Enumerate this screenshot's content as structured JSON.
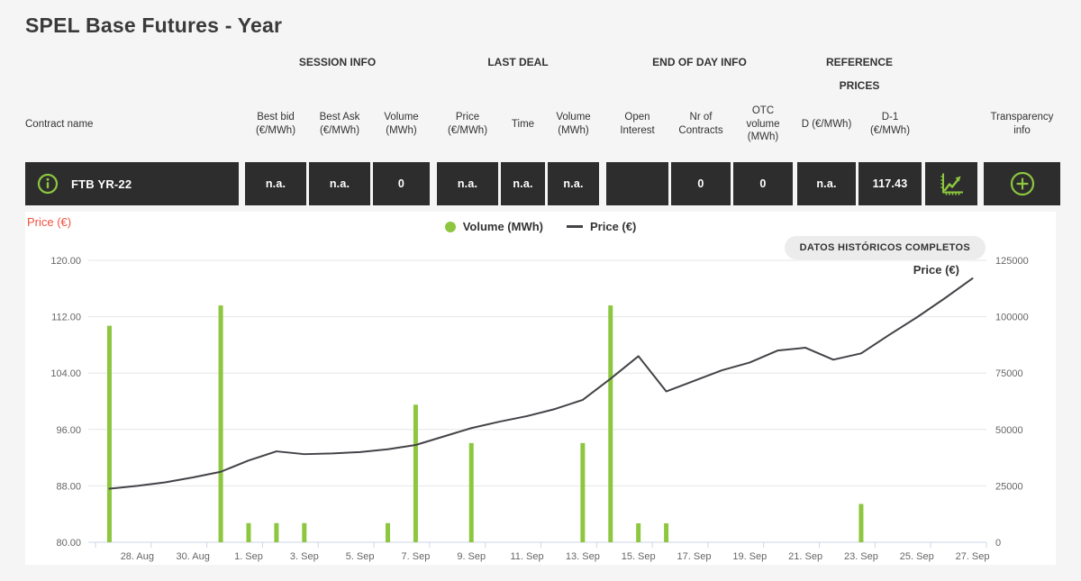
{
  "page": {
    "title": "SPEL Base Futures - Year"
  },
  "table": {
    "groups": {
      "session": "SESSION INFO",
      "last_deal": "LAST DEAL",
      "end_of_day": "END OF DAY INFO",
      "reference_l1": "REFERENCE",
      "reference_l2": "PRICES"
    },
    "headers": {
      "contract": "Contract name",
      "best_bid": "Best bid (€/MWh)",
      "best_ask": "Best Ask (€/MWh)",
      "volume": "Volume (MWh)",
      "price": "Price (€/MWh)",
      "time": "Time",
      "volume_last": "Volume (MWh)",
      "open_interest": "Open Interest",
      "nr_contracts": "Nr of Contracts",
      "otc_volume": "OTC volume (MWh)",
      "d": "D (€/MWh)",
      "d_1": "D-1 (€/MWh)",
      "transparency": "Transparency info"
    },
    "row": {
      "contract": "FTB YR-22",
      "best_bid": "n.a.",
      "best_ask": "n.a.",
      "volume": "0",
      "price": "n.a.",
      "time": "n.a.",
      "volume_last": "n.a.",
      "open_interest": "",
      "nr_contracts": "0",
      "otc_volume": "0",
      "d": "n.a.",
      "d_1": "117.43"
    }
  },
  "chart": {
    "axis_title_left": "Price (€)",
    "legend": {
      "volume": "Volume (MWh)",
      "price": "Price (€)"
    },
    "history_button": "DATOS HISTÓRICOS COMPLETOS",
    "line_label": "Price (€)"
  },
  "chart_data": {
    "type": "bar+line combo",
    "title": "",
    "x": [
      "27. Aug",
      "28. Aug",
      "29. Aug",
      "30. Aug",
      "31. Aug",
      "1. Sep",
      "2. Sep",
      "3. Sep",
      "4. Sep",
      "5. Sep",
      "6. Sep",
      "7. Sep",
      "8. Sep",
      "9. Sep",
      "10. Sep",
      "11. Sep",
      "12. Sep",
      "13. Sep",
      "14. Sep",
      "15. Sep",
      "16. Sep",
      "17. Sep",
      "18. Sep",
      "19. Sep",
      "20. Sep",
      "21. Sep",
      "22. Sep",
      "23. Sep",
      "24. Sep",
      "25. Sep",
      "26. Sep",
      "27. Sep"
    ],
    "x_tick_labels": [
      "28. Aug",
      "30. Aug",
      "1. Sep",
      "3. Sep",
      "5. Sep",
      "7. Sep",
      "9. Sep",
      "11. Sep",
      "13. Sep",
      "15. Sep",
      "17. Sep",
      "19. Sep",
      "21. Sep",
      "23. Sep",
      "25. Sep",
      "27. Sep"
    ],
    "series": [
      {
        "name": "Volume (MWh)",
        "type": "bar",
        "axis": "right",
        "color": "#8dc63f",
        "values": [
          96000,
          0,
          0,
          0,
          105000,
          8500,
          8500,
          8500,
          0,
          0,
          8500,
          61000,
          0,
          44000,
          0,
          0,
          0,
          44000,
          105000,
          8400,
          8400,
          0,
          0,
          0,
          0,
          0,
          0,
          17000,
          0,
          0,
          0,
          0
        ]
      },
      {
        "name": "Price (€)",
        "type": "line",
        "axis": "left",
        "color": "#434348",
        "values": [
          87.6,
          88.0,
          88.5,
          89.2,
          90.0,
          91.6,
          92.9,
          92.5,
          92.6,
          92.8,
          93.2,
          93.8,
          95.0,
          96.2,
          97.1,
          97.9,
          98.9,
          100.2,
          103.2,
          106.4,
          101.4,
          102.9,
          104.4,
          105.5,
          107.2,
          107.6,
          105.9,
          106.8,
          109.4,
          111.9,
          114.6,
          117.43
        ]
      }
    ],
    "left_axis": {
      "title": "Price (€)",
      "min": 80,
      "max": 120,
      "ticks": [
        80,
        88,
        96,
        104,
        112,
        120
      ],
      "tick_format": "2dp"
    },
    "right_axis": {
      "min": 0,
      "max": 125000,
      "ticks": [
        0,
        25000,
        50000,
        75000,
        100000,
        125000
      ]
    },
    "grid": true,
    "legend_position": "top-center",
    "annotation": {
      "text": "Price (€)",
      "position": "end-of-line"
    }
  }
}
